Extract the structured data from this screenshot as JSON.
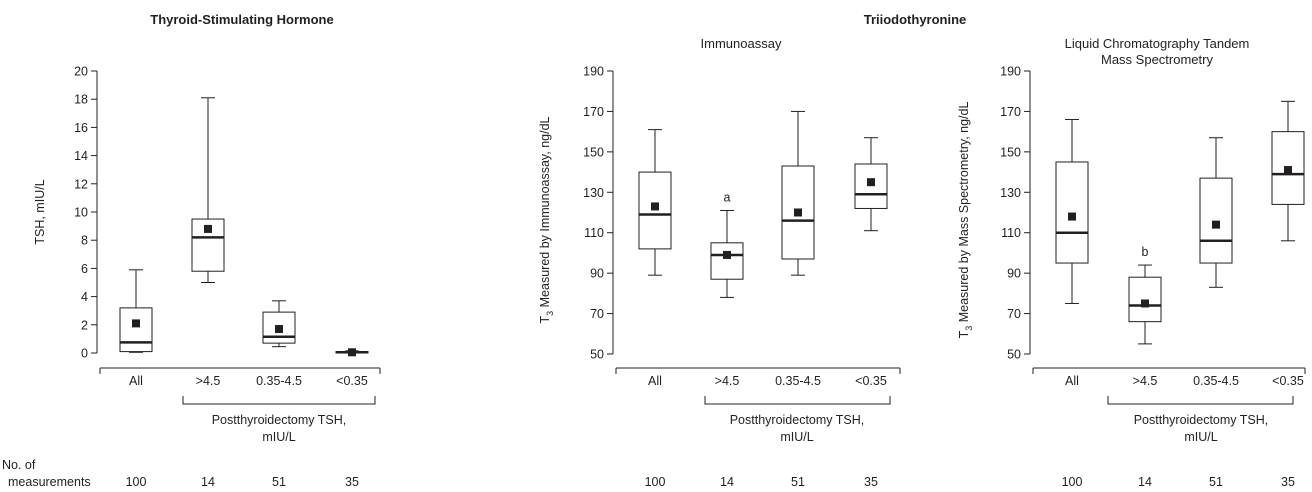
{
  "figure": {
    "tsh_title": "Thyroid-Stimulating Hormone",
    "t3_title": "Triiodothyronine",
    "group_label_line1": "Postthyroidectomy TSH,",
    "group_label_line2": "mIU/L",
    "counts_label_line1": "No. of",
    "counts_label_line2": "measurements",
    "counts": [
      "100",
      "14",
      "51",
      "35"
    ]
  },
  "chart_data": [
    {
      "type": "box",
      "title": "",
      "ylabel": "TSH, mIU/L",
      "ylim": [
        0,
        20
      ],
      "yticks": [
        0,
        2,
        4,
        6,
        8,
        10,
        12,
        14,
        16,
        18,
        20
      ],
      "categories": [
        "All",
        ">4.5",
        "0.35-4.5",
        "<0.35"
      ],
      "boxes": [
        {
          "whisker_low": 0.05,
          "q1": 0.1,
          "median": 0.75,
          "q3": 3.2,
          "whisker_high": 5.9,
          "mean": 2.1,
          "annotation": ""
        },
        {
          "whisker_low": 5.0,
          "q1": 5.8,
          "median": 8.2,
          "q3": 9.5,
          "whisker_high": 18.1,
          "mean": 8.8,
          "annotation": ""
        },
        {
          "whisker_low": 0.45,
          "q1": 0.7,
          "median": 1.15,
          "q3": 2.9,
          "whisker_high": 3.7,
          "mean": 1.7,
          "annotation": ""
        },
        {
          "whisker_low": 0.0,
          "q1": 0.0,
          "median": 0.05,
          "q3": 0.1,
          "whisker_high": 0.15,
          "mean": 0.05,
          "annotation": ""
        }
      ]
    },
    {
      "type": "box",
      "title": "Immunoassay",
      "ylabel": "T3 Measured by Immunoassay, ng/dL",
      "ylim": [
        45,
        190
      ],
      "yticks": [
        50,
        70,
        90,
        110,
        130,
        150,
        170,
        190
      ],
      "categories": [
        "All",
        ">4.5",
        "0.35-4.5",
        "<0.35"
      ],
      "boxes": [
        {
          "whisker_low": 89,
          "q1": 102,
          "median": 119,
          "q3": 140,
          "whisker_high": 161,
          "mean": 123,
          "annotation": ""
        },
        {
          "whisker_low": 78,
          "q1": 87,
          "median": 99,
          "q3": 105,
          "whisker_high": 121,
          "mean": 99,
          "annotation": "a"
        },
        {
          "whisker_low": 89,
          "q1": 97,
          "median": 116,
          "q3": 143,
          "whisker_high": 170,
          "mean": 120,
          "annotation": ""
        },
        {
          "whisker_low": 111,
          "q1": 122,
          "median": 129,
          "q3": 144,
          "whisker_high": 157,
          "mean": 135,
          "annotation": ""
        }
      ]
    },
    {
      "type": "box",
      "title": "Liquid Chromatography Tandem Mass Spectrometry",
      "ylabel": "T3 Measured by Mass Spectrometry, ng/dL",
      "ylim": [
        45,
        190
      ],
      "yticks": [
        50,
        70,
        90,
        110,
        130,
        150,
        170,
        190
      ],
      "categories": [
        "All",
        ">4.5",
        "0.35-4.5",
        "<0.35"
      ],
      "boxes": [
        {
          "whisker_low": 75,
          "q1": 95,
          "median": 110,
          "q3": 145,
          "whisker_high": 166,
          "mean": 118,
          "annotation": ""
        },
        {
          "whisker_low": 55,
          "q1": 66,
          "median": 74,
          "q3": 88,
          "whisker_high": 94,
          "mean": 75,
          "annotation": "b"
        },
        {
          "whisker_low": 83,
          "q1": 95,
          "median": 106,
          "q3": 137,
          "whisker_high": 157,
          "mean": 114,
          "annotation": ""
        },
        {
          "whisker_low": 106,
          "q1": 124,
          "median": 139,
          "q3": 160,
          "whisker_high": 175,
          "mean": 141,
          "annotation": ""
        }
      ]
    }
  ]
}
